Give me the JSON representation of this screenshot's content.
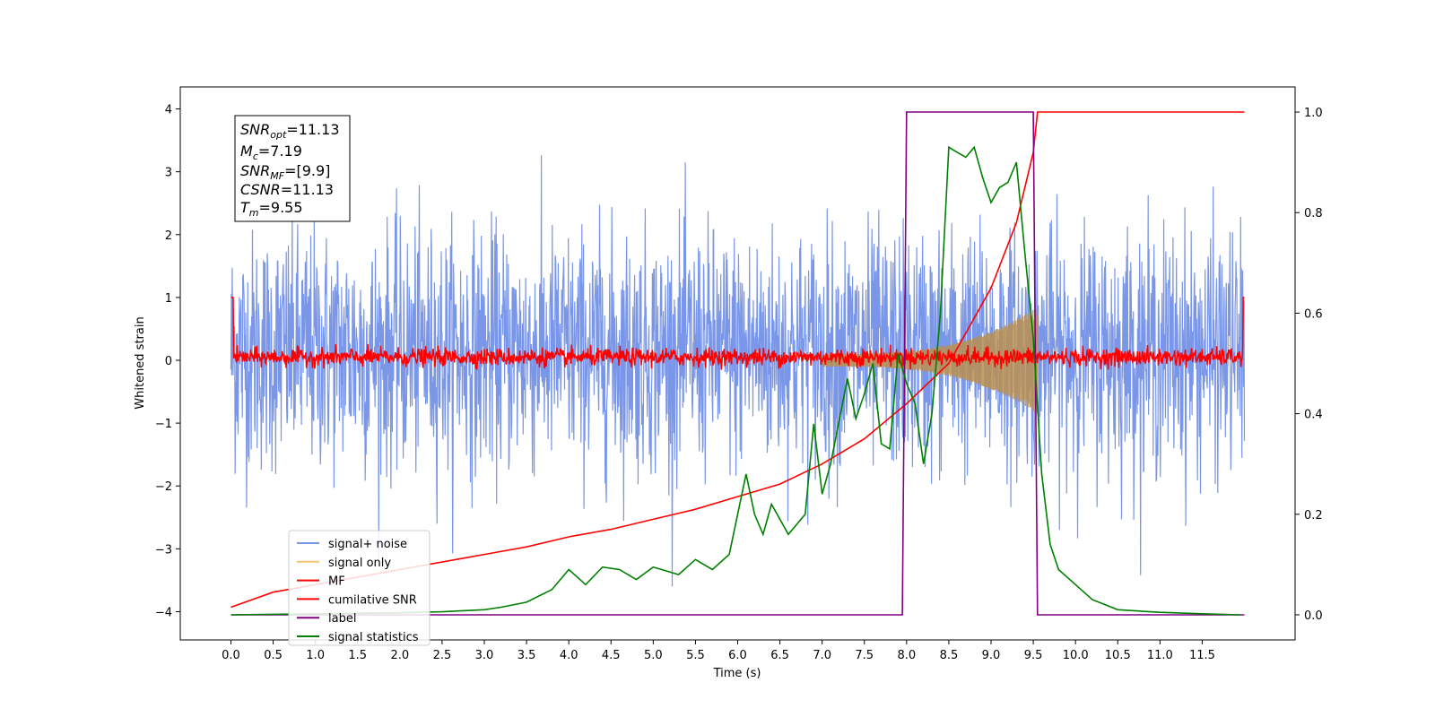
{
  "chart_data": {
    "type": "line",
    "xlabel": "Time (s)",
    "ylabel": "Whitened strain",
    "xlim": [
      -0.6,
      12.6
    ],
    "ylim": [
      -4.45,
      4.35
    ],
    "y2lim": [
      -0.05,
      1.05
    ],
    "xticks": [
      "0.0",
      "0.5",
      "1.0",
      "1.5",
      "2.0",
      "2.5",
      "3.0",
      "3.5",
      "4.0",
      "4.5",
      "5.0",
      "5.5",
      "6.0",
      "6.5",
      "7.0",
      "7.5",
      "8.0",
      "8.5",
      "9.0",
      "9.5",
      "10.0",
      "10.5",
      "11.0",
      "11.5"
    ],
    "yticks": [
      "4",
      "3",
      "2",
      "1",
      "0",
      "−1",
      "−2",
      "−3",
      "−4"
    ],
    "y2ticks": [
      "1.0",
      "0.8",
      "0.6",
      "0.4",
      "0.2",
      "0.0"
    ],
    "grid": false,
    "legend_position": "lower-left",
    "info_box": {
      "snr_opt": {
        "base": "SNR",
        "sub": "opt",
        "value": "=11.13"
      },
      "mc": {
        "base": "M",
        "sub": "c",
        "value": "=7.19"
      },
      "snr_mf": {
        "base": "SNR",
        "sub": "MF",
        "value": "=[9.9]"
      },
      "csnr": {
        "base": "CSNR",
        "sub": "",
        "value": "=11.13"
      },
      "tm": {
        "base": "T",
        "sub": "m",
        "value": "=9.55"
      }
    },
    "series": [
      {
        "name": "signal+ noise",
        "color": "#6a8be6",
        "axis": "left",
        "kind": "noise",
        "amplitude_range": [
          -3.6,
          3.7
        ]
      },
      {
        "name": "signal only",
        "color": "#f5c66a",
        "axis": "left",
        "kind": "chirp",
        "x_end": 9.55,
        "peak_amplitude": 0.75
      },
      {
        "name": "MF",
        "color": "#ff0000",
        "axis": "left",
        "kind": "noise",
        "amplitude_range": [
          -0.15,
          0.3
        ]
      },
      {
        "name": "cumilative SNR",
        "color": "#ff0000",
        "axis": "right",
        "x": [
          0.0,
          0.5,
          1.0,
          1.5,
          2.0,
          2.5,
          3.0,
          3.5,
          4.0,
          4.5,
          5.0,
          5.5,
          6.0,
          6.5,
          7.0,
          7.5,
          8.0,
          8.5,
          9.0,
          9.3,
          9.5,
          9.55,
          11.5,
          12.0
        ],
        "y": [
          0.015,
          0.045,
          0.06,
          0.075,
          0.09,
          0.105,
          0.12,
          0.135,
          0.155,
          0.17,
          0.19,
          0.21,
          0.235,
          0.26,
          0.3,
          0.35,
          0.42,
          0.5,
          0.65,
          0.78,
          0.92,
          1.0,
          1.0,
          1.0
        ]
      },
      {
        "name": "label",
        "color": "#800080",
        "axis": "right",
        "x": [
          0.0,
          7.95,
          8.0,
          9.5,
          9.55,
          12.0
        ],
        "y": [
          0.0,
          0.0,
          1.0,
          1.0,
          0.0,
          0.0
        ]
      },
      {
        "name": "signal statistics",
        "color": "#008000",
        "axis": "right",
        "x": [
          0.0,
          1.0,
          2.0,
          2.5,
          3.0,
          3.2,
          3.5,
          3.8,
          4.0,
          4.2,
          4.4,
          4.6,
          4.8,
          5.0,
          5.3,
          5.5,
          5.7,
          5.9,
          6.1,
          6.2,
          6.3,
          6.4,
          6.6,
          6.8,
          6.9,
          7.0,
          7.1,
          7.3,
          7.4,
          7.5,
          7.6,
          7.7,
          7.8,
          7.9,
          8.0,
          8.1,
          8.2,
          8.3,
          8.4,
          8.5,
          8.6,
          8.7,
          8.8,
          8.9,
          9.0,
          9.1,
          9.2,
          9.3,
          9.4,
          9.5,
          9.6,
          9.7,
          9.8,
          10.0,
          10.2,
          10.5,
          11.0,
          11.5,
          11.95
        ],
        "y": [
          0.0,
          0.002,
          0.004,
          0.006,
          0.01,
          0.015,
          0.025,
          0.05,
          0.09,
          0.06,
          0.095,
          0.09,
          0.07,
          0.095,
          0.08,
          0.11,
          0.09,
          0.12,
          0.28,
          0.2,
          0.16,
          0.22,
          0.16,
          0.2,
          0.38,
          0.24,
          0.3,
          0.47,
          0.39,
          0.44,
          0.5,
          0.34,
          0.33,
          0.52,
          0.46,
          0.42,
          0.3,
          0.4,
          0.6,
          0.93,
          0.92,
          0.91,
          0.93,
          0.87,
          0.82,
          0.85,
          0.86,
          0.9,
          0.72,
          0.55,
          0.28,
          0.14,
          0.09,
          0.06,
          0.03,
          0.01,
          0.005,
          0.002,
          0.0
        ]
      }
    ]
  }
}
